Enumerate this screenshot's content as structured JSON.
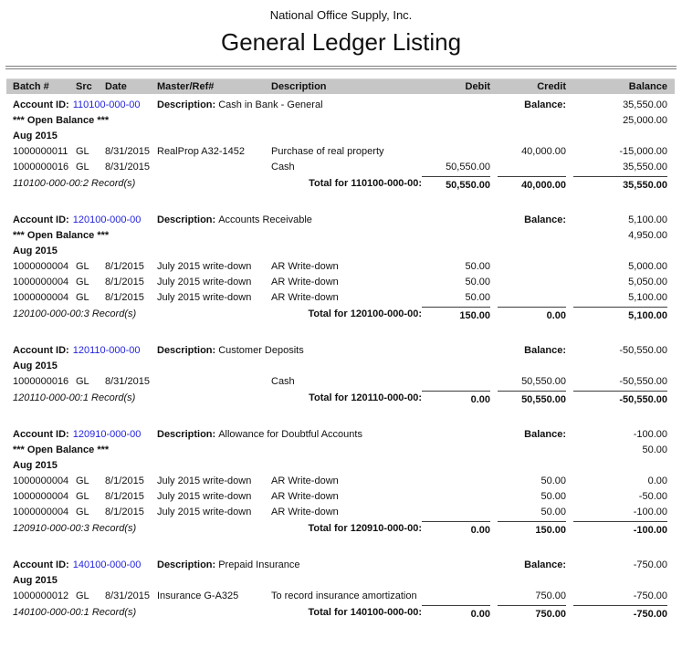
{
  "header": {
    "company": "National Office Supply, Inc.",
    "title": "General Ledger Listing"
  },
  "columns": {
    "batch": "Batch #",
    "src": "Src",
    "date": "Date",
    "master_ref": "Master/Ref#",
    "description": "Description",
    "debit": "Debit",
    "credit": "Credit",
    "balance": "Balance"
  },
  "labels": {
    "account_id": "Account ID:",
    "description": "Description:",
    "balance": "Balance:",
    "open_balance": "*** Open Balance ***"
  },
  "colors": {
    "account_id_blue": "#2323dd",
    "header_bar_gray": "#c6c6c6"
  },
  "sections": [
    {
      "account_id": "110100-000-00",
      "description": "Cash in Bank - General",
      "balance": "35,550.00",
      "open_balance": "25,000.00",
      "period": "Aug 2015",
      "rows": [
        {
          "batch": "1000000011",
          "src": "GL",
          "date": "8/31/2015",
          "ref": "RealProp A32-1452",
          "description": "Purchase of real property",
          "debit": "",
          "credit": "40,000.00",
          "balance": "-15,000.00"
        },
        {
          "batch": "1000000016",
          "src": "GL",
          "date": "8/31/2015",
          "ref": "",
          "description": "Cash",
          "debit": "50,550.00",
          "credit": "",
          "balance": "35,550.00"
        }
      ],
      "records_label": "110100-000-00:2 Record(s)",
      "total_label": "Total for 110100-000-00:",
      "total_debit": "50,550.00",
      "total_credit": "40,000.00",
      "total_balance": "35,550.00"
    },
    {
      "account_id": "120100-000-00",
      "description": "Accounts Receivable",
      "balance": "5,100.00",
      "open_balance": "4,950.00",
      "period": "Aug 2015",
      "rows": [
        {
          "batch": "1000000004",
          "src": "GL",
          "date": "8/1/2015",
          "ref": "July 2015 write-down",
          "description": "AR Write-down",
          "debit": "50.00",
          "credit": "",
          "balance": "5,000.00"
        },
        {
          "batch": "1000000004",
          "src": "GL",
          "date": "8/1/2015",
          "ref": "July 2015 write-down",
          "description": "AR Write-down",
          "debit": "50.00",
          "credit": "",
          "balance": "5,050.00"
        },
        {
          "batch": "1000000004",
          "src": "GL",
          "date": "8/1/2015",
          "ref": "July 2015 write-down",
          "description": "AR Write-down",
          "debit": "50.00",
          "credit": "",
          "balance": "5,100.00"
        }
      ],
      "records_label": "120100-000-00:3 Record(s)",
      "total_label": "Total for 120100-000-00:",
      "total_debit": "150.00",
      "total_credit": "0.00",
      "total_balance": "5,100.00"
    },
    {
      "account_id": "120110-000-00",
      "description": "Customer Deposits",
      "balance": "-50,550.00",
      "open_balance": null,
      "period": "Aug 2015",
      "rows": [
        {
          "batch": "1000000016",
          "src": "GL",
          "date": "8/31/2015",
          "ref": "",
          "description": "Cash",
          "debit": "",
          "credit": "50,550.00",
          "balance": "-50,550.00"
        }
      ],
      "records_label": "120110-000-00:1 Record(s)",
      "total_label": "Total for 120110-000-00:",
      "total_debit": "0.00",
      "total_credit": "50,550.00",
      "total_balance": "-50,550.00"
    },
    {
      "account_id": "120910-000-00",
      "description": "Allowance for Doubtful Accounts",
      "balance": "-100.00",
      "open_balance": "50.00",
      "period": "Aug 2015",
      "rows": [
        {
          "batch": "1000000004",
          "src": "GL",
          "date": "8/1/2015",
          "ref": "July 2015 write-down",
          "description": "AR Write-down",
          "debit": "",
          "credit": "50.00",
          "balance": "0.00"
        },
        {
          "batch": "1000000004",
          "src": "GL",
          "date": "8/1/2015",
          "ref": "July 2015 write-down",
          "description": "AR Write-down",
          "debit": "",
          "credit": "50.00",
          "balance": "-50.00"
        },
        {
          "batch": "1000000004",
          "src": "GL",
          "date": "8/1/2015",
          "ref": "July 2015 write-down",
          "description": "AR Write-down",
          "debit": "",
          "credit": "50.00",
          "balance": "-100.00"
        }
      ],
      "records_label": "120910-000-00:3 Record(s)",
      "total_label": "Total for 120910-000-00:",
      "total_debit": "0.00",
      "total_credit": "150.00",
      "total_balance": "-100.00"
    },
    {
      "account_id": "140100-000-00",
      "description": "Prepaid Insurance",
      "balance": "-750.00",
      "open_balance": null,
      "period": "Aug 2015",
      "rows": [
        {
          "batch": "1000000012",
          "src": "GL",
          "date": "8/31/2015",
          "ref": "Insurance G-A325",
          "description": "To record insurance amortization",
          "debit": "",
          "credit": "750.00",
          "balance": "-750.00"
        }
      ],
      "records_label": "140100-000-00:1 Record(s)",
      "total_label": "Total for 140100-000-00:",
      "total_debit": "0.00",
      "total_credit": "750.00",
      "total_balance": "-750.00"
    }
  ]
}
